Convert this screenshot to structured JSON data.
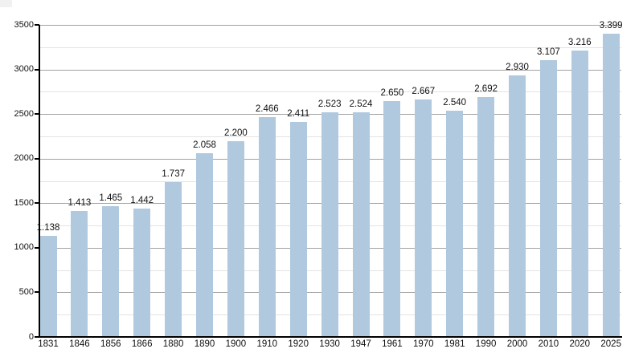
{
  "chart_data": {
    "type": "bar",
    "title": "",
    "xlabel": "",
    "ylabel": "",
    "categories": [
      "1831",
      "1846",
      "1856",
      "1866",
      "1880",
      "1890",
      "1900",
      "1910",
      "1920",
      "1930",
      "1947",
      "1961",
      "1970",
      "1981",
      "1990",
      "2000",
      "2010",
      "2020",
      "2025"
    ],
    "values": [
      1138,
      1413,
      1465,
      1442,
      1737,
      2058,
      2200,
      2466,
      2411,
      2523,
      2524,
      2650,
      2667,
      2540,
      2692,
      2930,
      3107,
      3216,
      3399
    ],
    "value_labels": [
      "1.138",
      "1.413",
      "1.465",
      "1.442",
      "1.737",
      "2.058",
      "2.200",
      "2.466",
      "2.411",
      "2.523",
      "2.524",
      "2.650",
      "2.667",
      "2.540",
      "2.692",
      "2.930",
      "3.107",
      "3.216",
      "3.399"
    ],
    "ylim": [
      0,
      3500
    ],
    "ytick_step": 500,
    "ytick_minor_step": 250,
    "ytick_labels": [
      "0",
      "500",
      "1000",
      "1500",
      "2000",
      "2500",
      "3000",
      "3500"
    ],
    "grid": true,
    "legend_position": "none",
    "colors": {
      "bar_fill": "#b0c9df",
      "major_gridline": "#a2a2a2",
      "minor_gridline": "#e3e3e3",
      "axis": "#000000",
      "text": "#111111",
      "background": "#ffffff"
    }
  }
}
